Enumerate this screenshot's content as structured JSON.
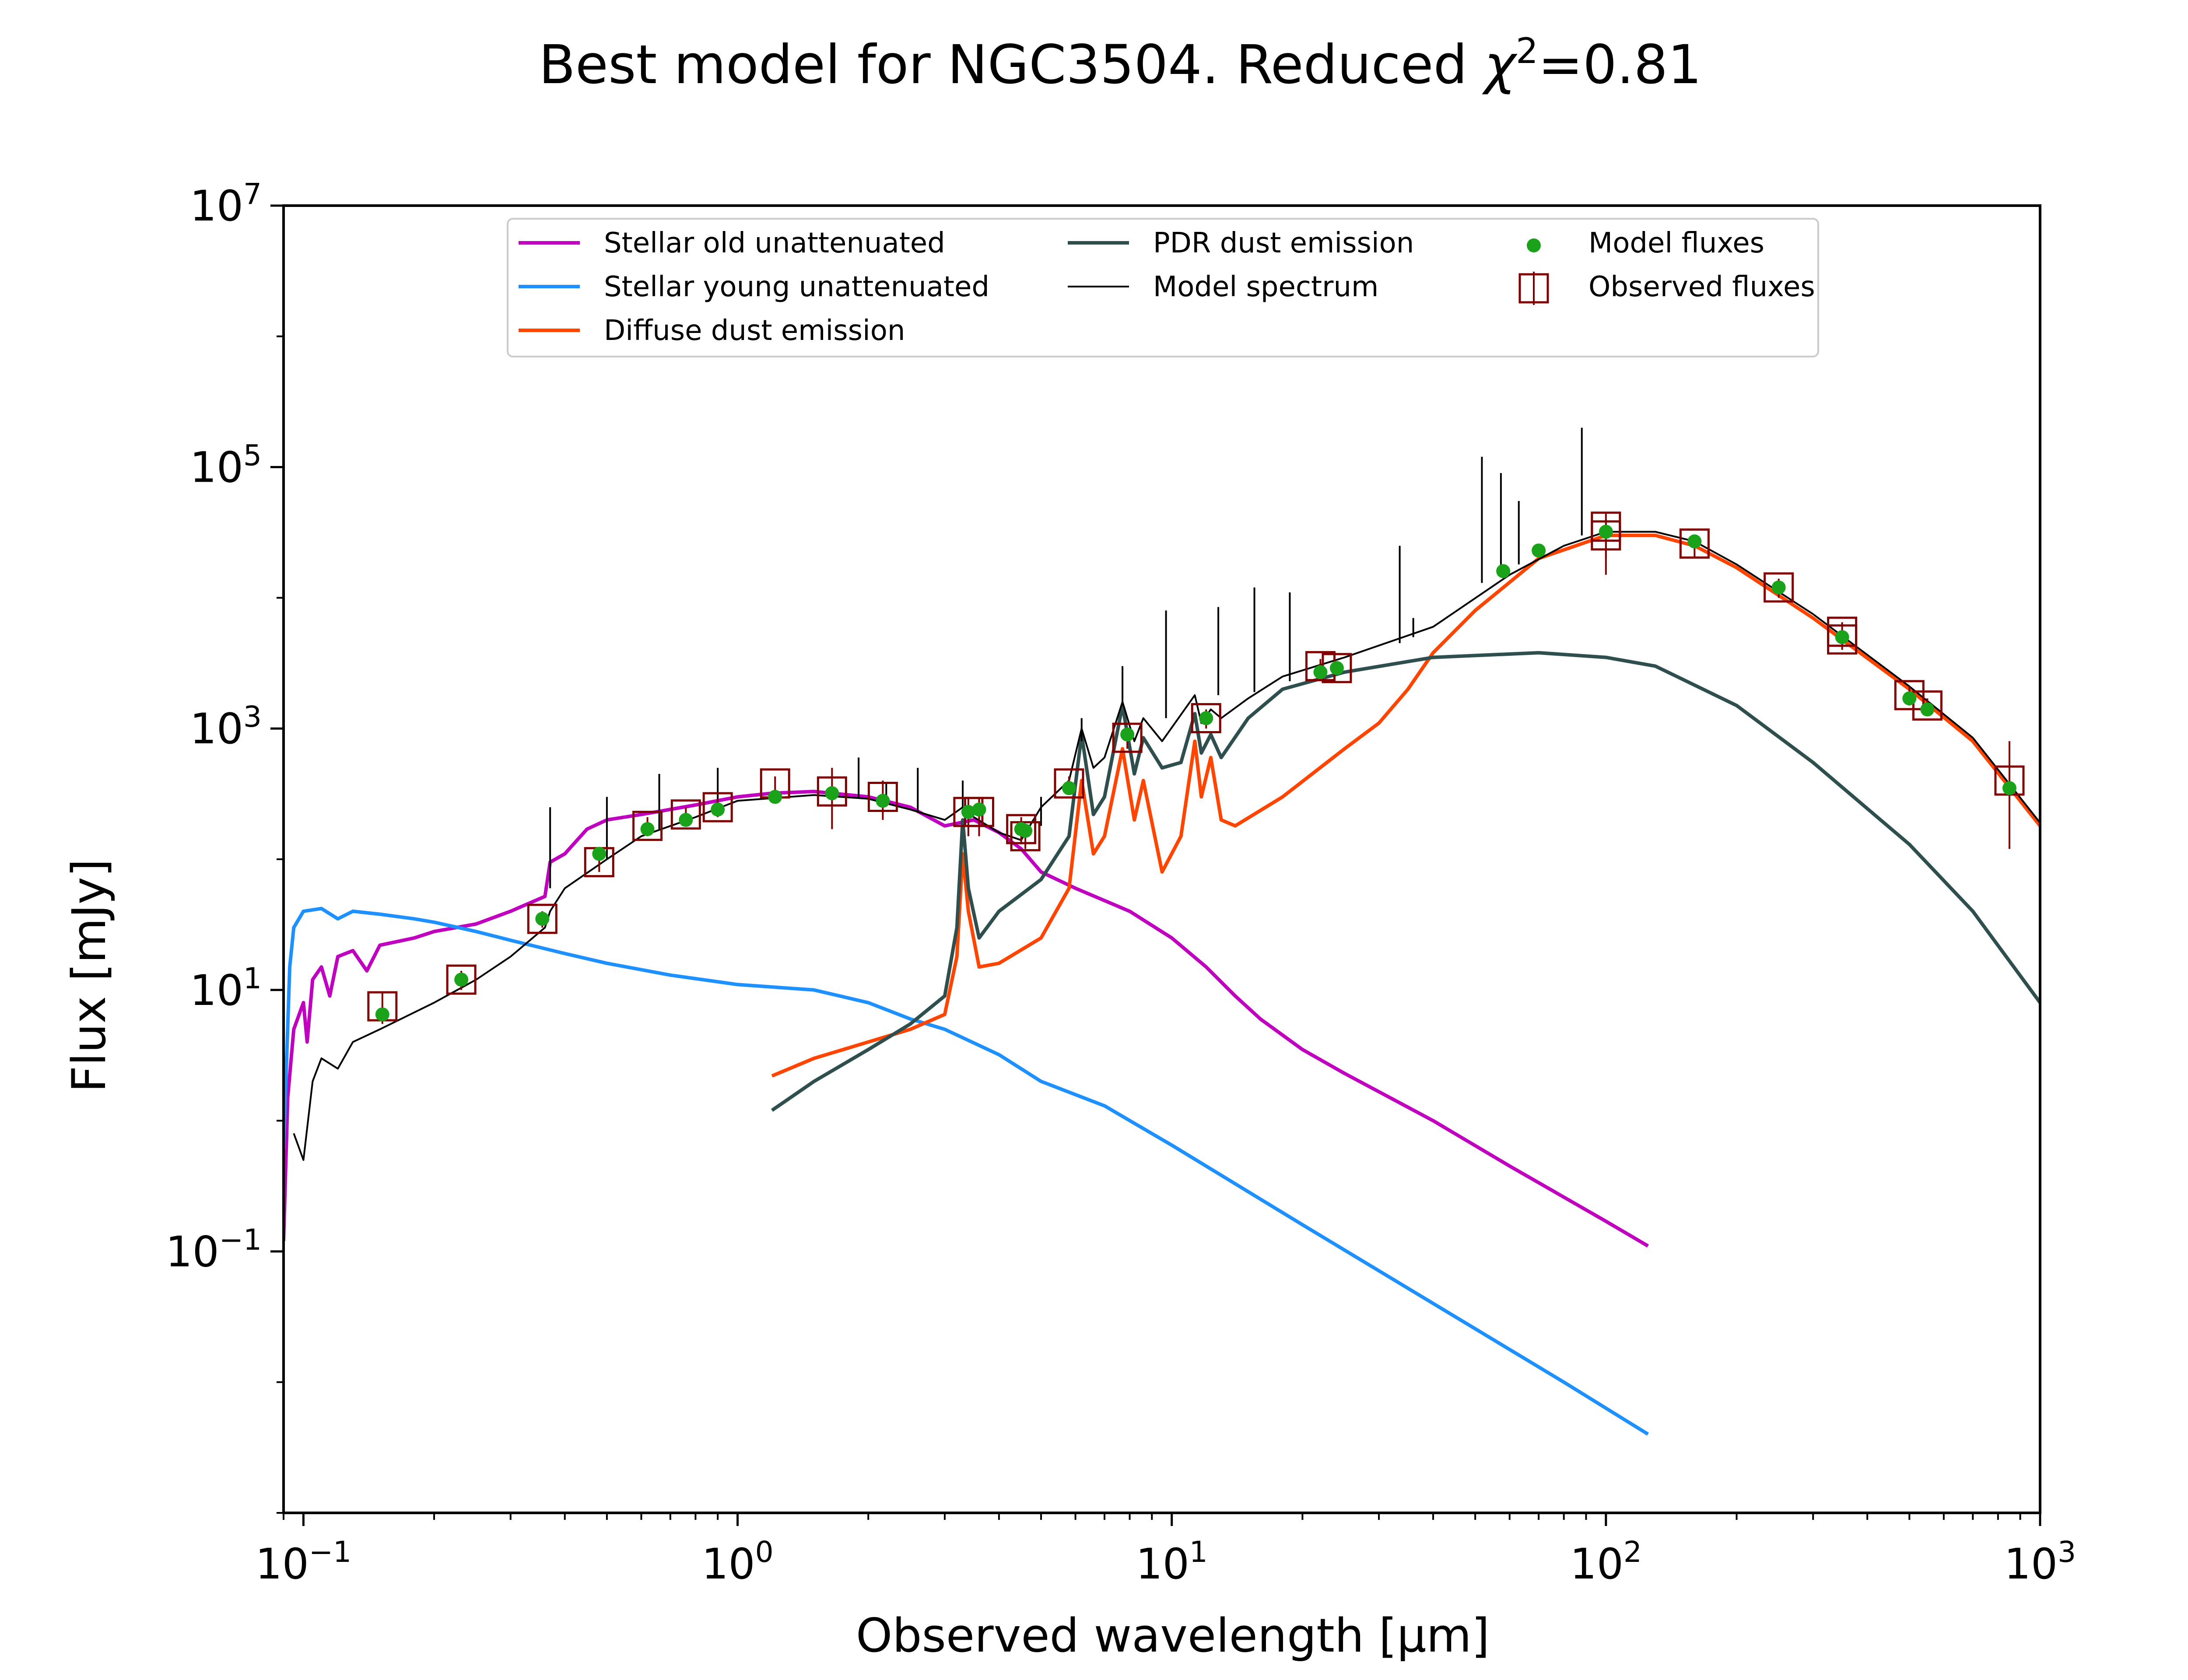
{
  "chart_data": {
    "type": "line",
    "title": "Best model for NGC3504. Reduced χ²=0.81",
    "title_parts": {
      "prefix": "Best model for NGC3504. Reduced ",
      "chi": "χ",
      "sup": "2",
      "suffix": "=0.81"
    },
    "xlabel": "Observed wavelength [μm]",
    "ylabel": "Flux [mJy]",
    "x_scale": "log",
    "y_scale": "log",
    "xlim": [
      0.09,
      1000
    ],
    "ylim": [
      0.001,
      10000000
    ],
    "x_ticks": [
      {
        "value": 0.1,
        "base": "10",
        "exp": "−1"
      },
      {
        "value": 1,
        "base": "10",
        "exp": "0"
      },
      {
        "value": 10,
        "base": "10",
        "exp": "1"
      },
      {
        "value": 100,
        "base": "10",
        "exp": "2"
      },
      {
        "value": 1000,
        "base": "10",
        "exp": "3"
      }
    ],
    "y_ticks": [
      {
        "value": 0.1,
        "base": "10",
        "exp": "−1"
      },
      {
        "value": 10,
        "base": "10",
        "exp": "1"
      },
      {
        "value": 1000,
        "base": "10",
        "exp": "3"
      },
      {
        "value": 100000,
        "base": "10",
        "exp": "5"
      },
      {
        "value": 10000000,
        "base": "10",
        "exp": "7"
      }
    ],
    "grid": false,
    "legend_position": "top-center",
    "legend": [
      {
        "label": "Stellar old unattenuated",
        "kind": "line",
        "color": "#bf00bf"
      },
      {
        "label": "Stellar young unattenuated",
        "kind": "line",
        "color": "#1e90ff"
      },
      {
        "label": "Diffuse dust emission",
        "kind": "line",
        "color": "#ff4500"
      },
      {
        "label": "PDR dust emission",
        "kind": "line",
        "color": "#2f4f4f"
      },
      {
        "label": "Model spectrum",
        "kind": "thinline",
        "color": "#000000"
      },
      {
        "label": "Model fluxes",
        "kind": "dot",
        "color": "#1aa31a"
      },
      {
        "label": "Observed fluxes",
        "kind": "square",
        "color": "#800000"
      }
    ],
    "series": [
      {
        "name": "Stellar old unattenuated",
        "color": "#bf00bf",
        "points": [
          [
            0.09,
            0.12
          ],
          [
            0.092,
            1.5
          ],
          [
            0.095,
            5
          ],
          [
            0.1,
            8
          ],
          [
            0.102,
            4
          ],
          [
            0.105,
            12
          ],
          [
            0.11,
            15
          ],
          [
            0.115,
            9
          ],
          [
            0.12,
            18
          ],
          [
            0.13,
            20
          ],
          [
            0.14,
            14
          ],
          [
            0.15,
            22
          ],
          [
            0.18,
            25
          ],
          [
            0.2,
            28
          ],
          [
            0.25,
            32
          ],
          [
            0.3,
            40
          ],
          [
            0.36,
            52
          ],
          [
            0.37,
            95
          ],
          [
            0.4,
            110
          ],
          [
            0.45,
            170
          ],
          [
            0.5,
            200
          ],
          [
            0.6,
            220
          ],
          [
            0.8,
            260
          ],
          [
            1,
            300
          ],
          [
            1.2,
            320
          ],
          [
            1.5,
            330
          ],
          [
            2,
            300
          ],
          [
            2.5,
            250
          ],
          [
            3,
            180
          ],
          [
            3.5,
            200
          ],
          [
            4,
            160
          ],
          [
            4.5,
            120
          ],
          [
            5,
            80
          ],
          [
            6,
            60
          ],
          [
            8,
            40
          ],
          [
            10,
            25
          ],
          [
            12,
            15
          ],
          [
            14,
            9
          ],
          [
            16,
            6
          ],
          [
            20,
            3.5
          ],
          [
            25,
            2.3
          ],
          [
            40,
            1
          ],
          [
            60,
            0.45
          ],
          [
            100,
            0.17
          ],
          [
            125,
            0.11
          ]
        ]
      },
      {
        "name": "Stellar young unattenuated",
        "color": "#1e90ff",
        "points": [
          [
            0.09,
            0.6
          ],
          [
            0.093,
            15
          ],
          [
            0.095,
            30
          ],
          [
            0.1,
            40
          ],
          [
            0.11,
            42
          ],
          [
            0.12,
            35
          ],
          [
            0.13,
            40
          ],
          [
            0.15,
            38
          ],
          [
            0.18,
            35
          ],
          [
            0.2,
            33
          ],
          [
            0.25,
            28
          ],
          [
            0.3,
            24
          ],
          [
            0.4,
            19
          ],
          [
            0.5,
            16
          ],
          [
            0.7,
            13
          ],
          [
            1,
            11
          ],
          [
            1.5,
            10
          ],
          [
            2,
            8
          ],
          [
            2.5,
            6
          ],
          [
            3,
            5
          ],
          [
            4,
            3.2
          ],
          [
            5,
            2
          ],
          [
            7,
            1.3
          ],
          [
            10,
            0.65
          ],
          [
            20,
            0.16
          ],
          [
            40,
            0.04
          ],
          [
            80,
            0.01
          ],
          [
            125,
            0.004
          ]
        ]
      },
      {
        "name": "Diffuse dust emission",
        "color": "#ff4500",
        "points": [
          [
            1.2,
            2.2
          ],
          [
            1.5,
            3
          ],
          [
            2,
            4
          ],
          [
            2.5,
            5
          ],
          [
            3,
            6.5
          ],
          [
            3.2,
            18
          ],
          [
            3.3,
            110
          ],
          [
            3.4,
            40
          ],
          [
            3.6,
            15
          ],
          [
            4,
            16
          ],
          [
            5,
            25
          ],
          [
            5.8,
            60
          ],
          [
            6.2,
            400
          ],
          [
            6.6,
            110
          ],
          [
            7,
            150
          ],
          [
            7.7,
            700
          ],
          [
            8.2,
            200
          ],
          [
            8.6,
            400
          ],
          [
            9.5,
            80
          ],
          [
            10.5,
            150
          ],
          [
            11.3,
            800
          ],
          [
            11.7,
            300
          ],
          [
            12.3,
            600
          ],
          [
            13,
            200
          ],
          [
            14,
            180
          ],
          [
            18,
            300
          ],
          [
            25,
            700
          ],
          [
            30,
            1100
          ],
          [
            35,
            2000
          ],
          [
            40,
            3800
          ],
          [
            50,
            8000
          ],
          [
            70,
            20000
          ],
          [
            100,
            30000
          ],
          [
            130,
            30000
          ],
          [
            160,
            25000
          ],
          [
            200,
            17000
          ],
          [
            300,
            7000
          ],
          [
            500,
            2000
          ],
          [
            700,
            800
          ],
          [
            1000,
            180
          ]
        ]
      },
      {
        "name": "PDR dust emission",
        "color": "#2f4f4f",
        "points": [
          [
            1.2,
            1.2
          ],
          [
            1.5,
            2
          ],
          [
            2,
            3.5
          ],
          [
            2.5,
            5.5
          ],
          [
            3,
            9
          ],
          [
            3.2,
            30
          ],
          [
            3.3,
            200
          ],
          [
            3.4,
            60
          ],
          [
            3.6,
            25
          ],
          [
            4,
            40
          ],
          [
            5,
            70
          ],
          [
            5.8,
            150
          ],
          [
            6.2,
            900
          ],
          [
            6.6,
            220
          ],
          [
            7,
            300
          ],
          [
            7.7,
            1500
          ],
          [
            8.2,
            450
          ],
          [
            8.6,
            850
          ],
          [
            9.5,
            500
          ],
          [
            10.5,
            550
          ],
          [
            11.3,
            1300
          ],
          [
            11.7,
            650
          ],
          [
            12.3,
            900
          ],
          [
            13,
            600
          ],
          [
            15,
            1200
          ],
          [
            18,
            2000
          ],
          [
            25,
            2700
          ],
          [
            40,
            3500
          ],
          [
            70,
            3800
          ],
          [
            100,
            3500
          ],
          [
            130,
            3000
          ],
          [
            200,
            1500
          ],
          [
            300,
            550
          ],
          [
            500,
            130
          ],
          [
            700,
            40
          ],
          [
            1000,
            8
          ]
        ]
      },
      {
        "name": "Model spectrum",
        "color": "#000000",
        "points": [
          [
            0.095,
            0.8
          ],
          [
            0.1,
            0.5
          ],
          [
            0.105,
            2
          ],
          [
            0.11,
            3
          ],
          [
            0.12,
            2.5
          ],
          [
            0.13,
            4
          ],
          [
            0.15,
            5
          ],
          [
            0.2,
            8
          ],
          [
            0.25,
            12
          ],
          [
            0.3,
            18
          ],
          [
            0.36,
            30
          ],
          [
            0.37,
            40
          ],
          [
            0.4,
            60
          ],
          [
            0.5,
            100
          ],
          [
            0.6,
            150
          ],
          [
            0.8,
            210
          ],
          [
            1,
            280
          ],
          [
            1.5,
            310
          ],
          [
            2,
            290
          ],
          [
            2.5,
            240
          ],
          [
            3,
            200
          ],
          [
            3.3,
            250
          ],
          [
            3.5,
            210
          ],
          [
            4,
            160
          ],
          [
            4.5,
            140
          ],
          [
            5,
            250
          ],
          [
            5.8,
            400
          ],
          [
            6.2,
            1000
          ],
          [
            6.6,
            500
          ],
          [
            7,
            600
          ],
          [
            7.7,
            1600
          ],
          [
            8.2,
            800
          ],
          [
            8.6,
            1200
          ],
          [
            9.5,
            800
          ],
          [
            11.3,
            1800
          ],
          [
            11.7,
            1100
          ],
          [
            12.3,
            1400
          ],
          [
            13,
            1200
          ],
          [
            15,
            1700
          ],
          [
            18,
            2500
          ],
          [
            25,
            3500
          ],
          [
            40,
            6000
          ],
          [
            60,
            15000
          ],
          [
            80,
            25000
          ],
          [
            100,
            32000
          ],
          [
            130,
            32000
          ],
          [
            160,
            27000
          ],
          [
            200,
            18000
          ],
          [
            300,
            7500
          ],
          [
            500,
            2100
          ],
          [
            700,
            850
          ],
          [
            1000,
            190
          ]
        ]
      }
    ],
    "spectrum_lines": [
      [
        0.37,
        60,
        250
      ],
      [
        0.5,
        100,
        300
      ],
      [
        0.66,
        170,
        450
      ],
      [
        0.9,
        250,
        500
      ],
      [
        1.9,
        290,
        600
      ],
      [
        2.2,
        280,
        380
      ],
      [
        2.6,
        230,
        500
      ],
      [
        3.3,
        250,
        400
      ],
      [
        5,
        180,
        300
      ],
      [
        6.2,
        800,
        1200
      ],
      [
        7.7,
        1500,
        3000
      ],
      [
        9.7,
        1200,
        8000
      ],
      [
        12.8,
        1800,
        8500
      ],
      [
        15.5,
        1900,
        12000
      ],
      [
        18.7,
        2300,
        11000
      ],
      [
        33.5,
        4500,
        25000
      ],
      [
        36,
        5000,
        7000
      ],
      [
        51.8,
        13000,
        120000
      ],
      [
        57.3,
        16000,
        90000
      ],
      [
        63,
        18000,
        55000
      ],
      [
        88,
        30000,
        200000
      ]
    ],
    "model_fluxes": [
      [
        0.152,
        6.5
      ],
      [
        0.231,
        12
      ],
      [
        0.355,
        35
      ],
      [
        0.48,
        110
      ],
      [
        0.62,
        170
      ],
      [
        0.76,
        200
      ],
      [
        0.9,
        240
      ],
      [
        1.22,
        300
      ],
      [
        1.65,
        320
      ],
      [
        2.16,
        280
      ],
      [
        3.4,
        230
      ],
      [
        3.6,
        240
      ],
      [
        4.5,
        170
      ],
      [
        4.6,
        165
      ],
      [
        5.8,
        350
      ],
      [
        7.9,
        900
      ],
      [
        12,
        1200
      ],
      [
        22,
        2700
      ],
      [
        24,
        2900
      ],
      [
        58,
        16000
      ],
      [
        70,
        23000
      ],
      [
        100,
        32000
      ],
      [
        160,
        27000
      ],
      [
        250,
        12000
      ],
      [
        350,
        5000
      ],
      [
        500,
        1700
      ],
      [
        550,
        1400
      ],
      [
        850,
        350
      ]
    ],
    "observed_fluxes": [
      [
        0.152,
        7.5,
        5.5,
        9.5
      ],
      [
        0.231,
        12,
        10,
        14
      ],
      [
        0.355,
        35,
        30,
        40
      ],
      [
        0.48,
        95,
        80,
        110
      ],
      [
        0.62,
        180,
        150,
        210
      ],
      [
        0.76,
        220,
        190,
        250
      ],
      [
        0.9,
        250,
        210,
        290
      ],
      [
        1.22,
        380,
        330,
        430
      ],
      [
        1.65,
        330,
        170,
        500
      ],
      [
        2.16,
        300,
        200,
        400
      ],
      [
        3.4,
        230,
        150,
        300
      ],
      [
        3.6,
        230,
        150,
        300
      ],
      [
        4.5,
        170,
        130,
        210
      ],
      [
        4.6,
        150,
        120,
        180
      ],
      [
        5.8,
        380,
        330,
        430
      ],
      [
        7.9,
        850,
        700,
        1000
      ],
      [
        12,
        1200,
        1000,
        1400
      ],
      [
        22,
        3000,
        2600,
        3400
      ],
      [
        24,
        2900,
        2600,
        3200
      ],
      [
        100,
        35000,
        15000,
        45000
      ],
      [
        100,
        30000,
        20000,
        40000
      ],
      [
        160,
        26000,
        20000,
        30000
      ],
      [
        250,
        12000,
        10000,
        14000
      ],
      [
        350,
        5500,
        4500,
        6500
      ],
      [
        350,
        4800,
        4000,
        5500
      ],
      [
        500,
        1800,
        1500,
        2100
      ],
      [
        550,
        1500,
        1300,
        1700
      ],
      [
        850,
        400,
        120,
        800
      ]
    ]
  }
}
